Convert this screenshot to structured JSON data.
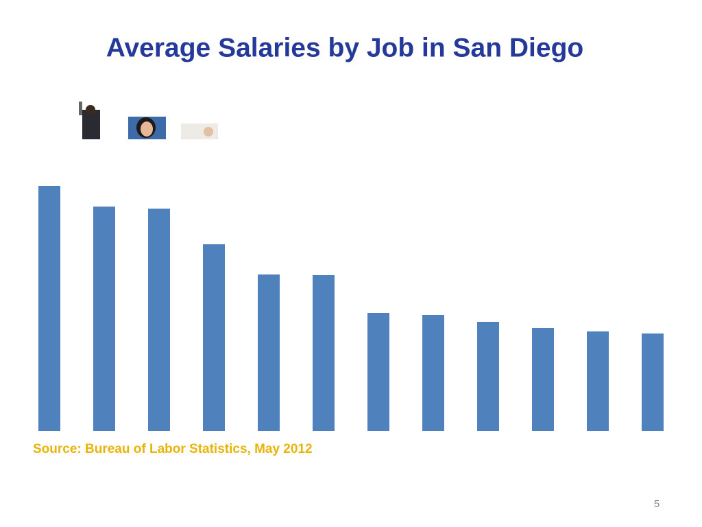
{
  "chart_data": {
    "type": "bar",
    "title": "Average Salaries by Job in San Diego",
    "source": "Source:  Bureau of Labor Statistics, May 2012",
    "page_number": "5",
    "categories": [
      null,
      null,
      null,
      null,
      null,
      null,
      null,
      null,
      null,
      null,
      null,
      null
    ],
    "values": [
      357,
      327,
      324,
      272,
      228,
      227,
      172,
      169,
      159,
      150,
      145,
      142
    ],
    "color": "#4f81bd",
    "ylim": [
      0,
      400
    ]
  }
}
